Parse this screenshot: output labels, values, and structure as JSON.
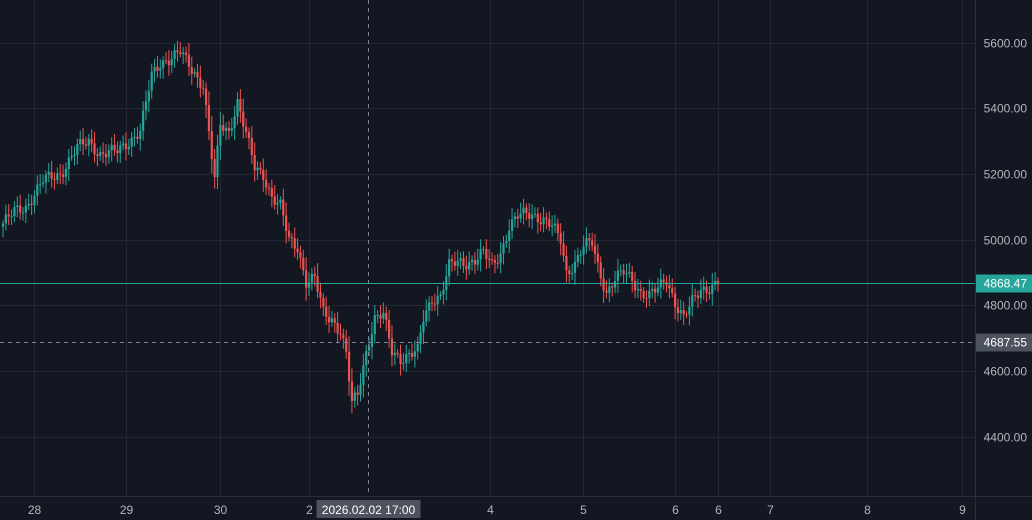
{
  "colors": {
    "background": "#131722",
    "grid": "#242832",
    "axis_text": "#b2b5be",
    "up": "#26a69a",
    "down": "#ef5350",
    "last_price_line": "#26a69a",
    "crosshair": "#758696",
    "crosshair_badge": "#4c525e"
  },
  "chart_data": {
    "type": "candlestick",
    "grid": true,
    "price_axis": "right",
    "ylim": [
      4220,
      5730
    ],
    "y_ticks": [
      "5600.00",
      "5400.00",
      "5200.00",
      "5000.00",
      "4800.00",
      "4600.00",
      "4400.00"
    ],
    "x_ticks": [
      "28",
      "29",
      "30",
      "2",
      "4",
      "5",
      "6",
      "6",
      "7",
      "8",
      "9"
    ],
    "last_price": {
      "label": "4868.47",
      "value": 4868.47
    },
    "crosshair": {
      "time_label": "2026.02.02 17:00",
      "price_label": "4687.55",
      "price_value": 4687.55
    },
    "anchors": [
      [
        0,
        5050
      ],
      [
        4,
        5085
      ],
      [
        8,
        5100
      ],
      [
        14,
        5180
      ],
      [
        20,
        5200
      ],
      [
        26,
        5280
      ],
      [
        30,
        5300
      ],
      [
        34,
        5260
      ],
      [
        40,
        5270
      ],
      [
        44,
        5300
      ],
      [
        48,
        5330
      ],
      [
        52,
        5500
      ],
      [
        55,
        5540
      ],
      [
        58,
        5550
      ],
      [
        62,
        5570
      ],
      [
        66,
        5520
      ],
      [
        70,
        5470
      ],
      [
        74,
        5180
      ],
      [
        76,
        5350
      ],
      [
        79,
        5330
      ],
      [
        82,
        5420
      ],
      [
        85,
        5320
      ],
      [
        88,
        5220
      ],
      [
        91,
        5200
      ],
      [
        94,
        5130
      ],
      [
        97,
        5100
      ],
      [
        100,
        5000
      ],
      [
        103,
        4980
      ],
      [
        106,
        4870
      ],
      [
        109,
        4880
      ],
      [
        112,
        4780
      ],
      [
        115,
        4760
      ],
      [
        118,
        4720
      ],
      [
        120,
        4650
      ],
      [
        122,
        4500
      ],
      [
        124,
        4530
      ],
      [
        127,
        4660
      ],
      [
        130,
        4760
      ],
      [
        133,
        4770
      ],
      [
        136,
        4660
      ],
      [
        139,
        4640
      ],
      [
        142,
        4650
      ],
      [
        145,
        4660
      ],
      [
        147,
        4760
      ],
      [
        150,
        4820
      ],
      [
        153,
        4830
      ],
      [
        156,
        4920
      ],
      [
        159,
        4930
      ],
      [
        162,
        4930
      ],
      [
        165,
        4940
      ],
      [
        168,
        4960
      ],
      [
        171,
        4920
      ],
      [
        174,
        4960
      ],
      [
        177,
        5040
      ],
      [
        180,
        5070
      ],
      [
        183,
        5080
      ],
      [
        186,
        5075
      ],
      [
        189,
        5060
      ],
      [
        192,
        5040
      ],
      [
        195,
        5000
      ],
      [
        197,
        4900
      ],
      [
        200,
        4930
      ],
      [
        203,
        4980
      ],
      [
        206,
        4990
      ],
      [
        208,
        4920
      ],
      [
        211,
        4840
      ],
      [
        214,
        4880
      ],
      [
        217,
        4900
      ],
      [
        220,
        4880
      ],
      [
        223,
        4840
      ],
      [
        226,
        4830
      ],
      [
        229,
        4850
      ],
      [
        232,
        4880
      ],
      [
        235,
        4810
      ],
      [
        238,
        4760
      ],
      [
        241,
        4810
      ],
      [
        244,
        4850
      ],
      [
        247,
        4855
      ],
      [
        250,
        4868.47
      ]
    ]
  }
}
